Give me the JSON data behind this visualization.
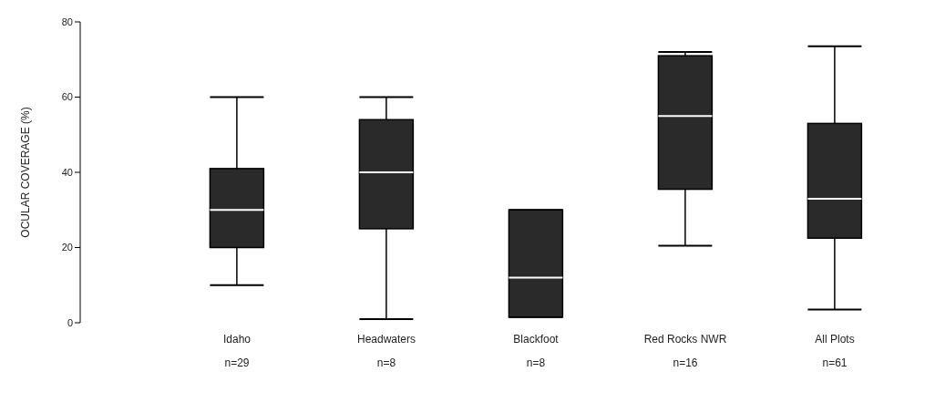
{
  "chart_data": {
    "type": "box",
    "ylabel": "OCULAR COVERAGE (%)",
    "categories": [
      "Idaho\nn=29",
      "Headwaters\nn=8",
      "Blackfoot\nn=8",
      "Red Rocks NWR\nn=16",
      "All Plots\nn=61"
    ],
    "color": "#2a2a2a",
    "boxes": [
      {
        "low": 10,
        "q1": 20,
        "median": 30,
        "q3": 41,
        "high": 60
      },
      {
        "low": 1,
        "q1": 25,
        "median": 40,
        "q3": 54,
        "high": 60
      },
      {
        "low": 1.5,
        "q1": 1.5,
        "median": 12,
        "q3": 30,
        "high": 30
      },
      {
        "low": 20.5,
        "q1": 35.5,
        "median": 55,
        "q3": 71,
        "high": 72
      },
      {
        "low": 3.5,
        "q1": 22.5,
        "median": 33,
        "q3": 53,
        "high": 73.5
      }
    ],
    "ylim": [
      0,
      80
    ],
    "yticks": [
      0,
      20,
      40,
      60,
      80
    ],
    "grid": false,
    "legend": false
  }
}
